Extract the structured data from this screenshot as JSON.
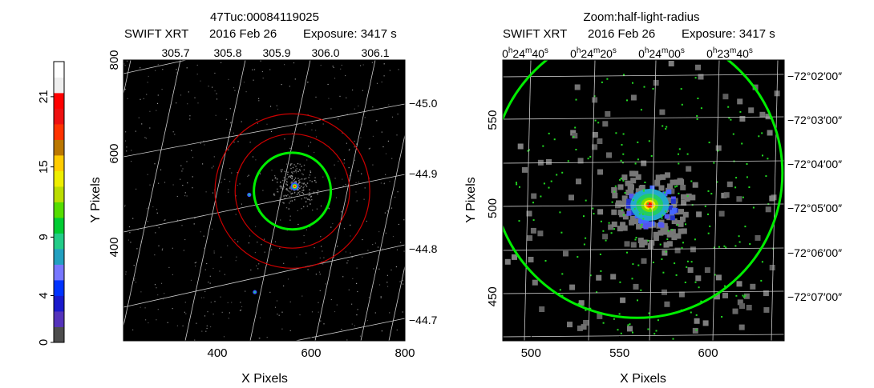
{
  "colorbar": {
    "tick_labels": [
      "0",
      "4",
      "9",
      "15",
      "21"
    ],
    "tick_values": [
      0,
      4,
      9,
      15,
      21
    ],
    "range": [
      0,
      24
    ],
    "colors": [
      "#4d4d4d",
      "#5533bb",
      "#1a1acc",
      "#0033ff",
      "#7777ff",
      "#22a0c0",
      "#22cc88",
      "#00cc33",
      "#55dd00",
      "#bbdd00",
      "#eeee00",
      "#ffcc00",
      "#bb7700",
      "#ff3300",
      "#ee1111",
      "#ff0000",
      "#eeeeee",
      "#ffffff"
    ]
  },
  "chart_data": [
    {
      "type": "heatmap",
      "title": "47Tuc:00084119025",
      "subtitle_instrument": "SWIFT XRT",
      "subtitle_date": "2016 Feb 26",
      "subtitle_exposure": "Exposure: 3417 s",
      "xlabel": "X Pixels",
      "ylabel": "Y Pixels",
      "xlim": [
        200,
        800
      ],
      "ylim": [
        200,
        800
      ],
      "x_ticks": [
        400,
        600,
        800
      ],
      "x_tick_labels": [
        "400",
        "600",
        "800"
      ],
      "y_ticks": [
        400,
        600,
        800
      ],
      "y_tick_labels": [
        "400",
        "600",
        "800"
      ],
      "top_ticks": [
        "305.7",
        "305.8",
        "305.9",
        "306.0",
        "306.1"
      ],
      "right_ticks": [
        "−45.0",
        "−44.9",
        "−44.8",
        "−44.7"
      ],
      "background": "#000000",
      "grid": true,
      "source": {
        "x": 565,
        "y": 530
      },
      "secondary_sources": [
        {
          "x": 480,
          "y": 304
        },
        {
          "x": 468,
          "y": 512
        }
      ],
      "circles": [
        {
          "center": [
            560,
            520
          ],
          "radius": 82,
          "color": "#00ee00"
        },
        {
          "center": [
            560,
            520
          ],
          "radius": 122,
          "color": "#cc0000"
        },
        {
          "center": [
            560,
            520
          ],
          "radius": 165,
          "color": "#cc0000"
        }
      ]
    },
    {
      "type": "heatmap",
      "title": "Zoom:half-light-radius",
      "subtitle_instrument": "SWIFT XRT",
      "subtitle_date": "2016 Feb 26",
      "subtitle_exposure": "Exposure: 3417 s",
      "xlabel": "X Pixels",
      "ylabel": "Y Pixels",
      "xlim": [
        484,
        643
      ],
      "ylim": [
        425,
        584
      ],
      "x_ticks": [
        500,
        550,
        600
      ],
      "x_tick_labels": [
        "500",
        "550",
        "600"
      ],
      "y_ticks": [
        450,
        500,
        550
      ],
      "y_tick_labels": [
        "450",
        "500",
        "550"
      ],
      "top_ticks": [
        {
          "h": "0",
          "m": "24",
          "s": "40"
        },
        {
          "h": "0",
          "m": "24",
          "s": "20"
        },
        {
          "h": "0",
          "m": "24",
          "s": "00"
        },
        {
          "h": "0",
          "m": "23",
          "s": "40"
        }
      ],
      "right_ticks": [
        {
          "deg": "−72",
          "min": "02",
          "sec": "00"
        },
        {
          "deg": "−72",
          "min": "03",
          "sec": "00"
        },
        {
          "deg": "−72",
          "min": "04",
          "sec": "00"
        },
        {
          "deg": "−72",
          "min": "05",
          "sec": "00"
        },
        {
          "deg": "−72",
          "min": "06",
          "sec": "00"
        },
        {
          "deg": "−72",
          "min": "07",
          "sec": "00"
        }
      ],
      "background": "#000000",
      "grid": true,
      "source": {
        "x": 567,
        "y": 502
      },
      "circles": [
        {
          "center": [
            560,
            520
          ],
          "radius": 82,
          "color": "#00ee00"
        }
      ]
    }
  ]
}
